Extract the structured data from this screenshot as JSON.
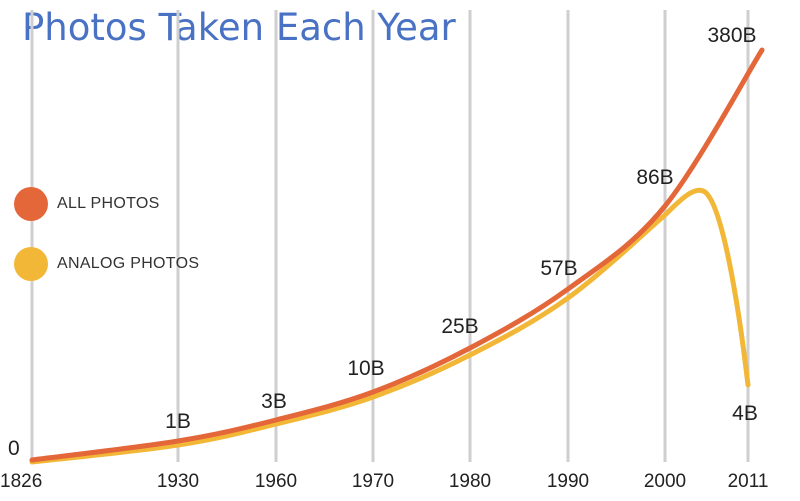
{
  "chart_data": {
    "type": "line",
    "title": "Photos Taken Each Year",
    "xlabel": "",
    "ylabel": "",
    "x_ticks": [
      "1826",
      "1930",
      "1960",
      "1970",
      "1980",
      "1990",
      "2000",
      "2011"
    ],
    "grid": "vertical",
    "legend_position": "left",
    "series": [
      {
        "name": "ALL PHOTOS",
        "color": "#e4673a",
        "points": [
          {
            "x": "1826",
            "value": 0,
            "label": "0"
          },
          {
            "x": "1930",
            "value": 1,
            "label": "1B"
          },
          {
            "x": "1960",
            "value": 3,
            "label": "3B"
          },
          {
            "x": "1970",
            "value": 10,
            "label": "10B"
          },
          {
            "x": "1980",
            "value": 25,
            "label": "25B"
          },
          {
            "x": "1990",
            "value": 57,
            "label": "57B"
          },
          {
            "x": "2000",
            "value": 86,
            "label": "86B"
          },
          {
            "x": "2011",
            "value": 380,
            "label": "380B"
          }
        ]
      },
      {
        "name": "ANALOG PHOTOS",
        "color": "#f2b736",
        "points": [
          {
            "x": "1826",
            "value": 0
          },
          {
            "x": "1930",
            "value": 1
          },
          {
            "x": "1960",
            "value": 3
          },
          {
            "x": "1970",
            "value": 10
          },
          {
            "x": "1980",
            "value": 25
          },
          {
            "x": "1990",
            "value": 57
          },
          {
            "x": "2000",
            "value": 86
          },
          {
            "x": "2011",
            "value": 4,
            "label": "4B"
          }
        ]
      }
    ]
  }
}
